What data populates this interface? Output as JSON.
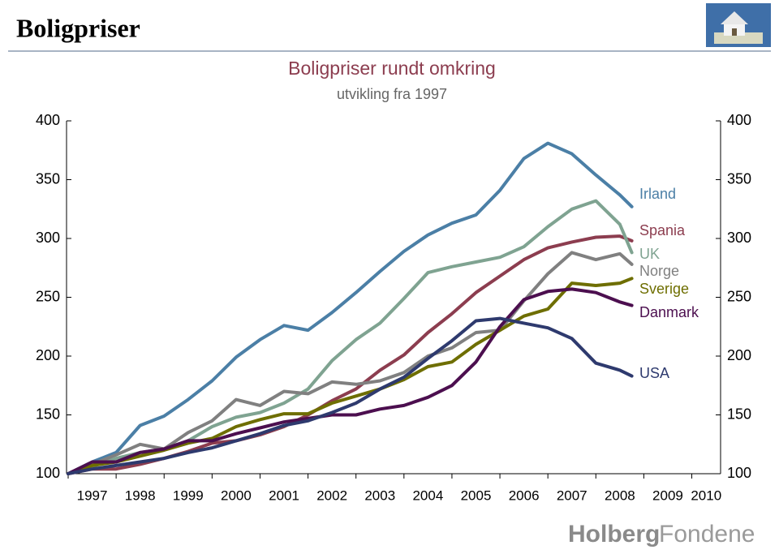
{
  "header": {
    "title": "Boligpriser"
  },
  "footer": {
    "logo_bold": "Holberg",
    "logo_light": "Fondene"
  },
  "chart_data": {
    "type": "line",
    "title": "Boligpriser rundt omkring",
    "subtitle": "utvikling fra 1997",
    "x": [
      1997,
      1997.5,
      1998,
      1998.5,
      1999,
      1999.5,
      2000,
      2000.5,
      2001,
      2001.5,
      2002,
      2002.5,
      2003,
      2003.5,
      2004,
      2004.5,
      2005,
      2005.5,
      2006,
      2006.5,
      2007,
      2007.5,
      2008,
      2008.5,
      2008.75
    ],
    "xlim": [
      1997,
      2010.6
    ],
    "xticks": [
      1997,
      1998,
      1999,
      2000,
      2001,
      2002,
      2003,
      2004,
      2005,
      2006,
      2007,
      2008,
      2009,
      2010
    ],
    "ylim": [
      100,
      400
    ],
    "yticks": [
      100,
      150,
      200,
      250,
      300,
      350,
      400
    ],
    "grid": false,
    "series": [
      {
        "name": "Irland",
        "color": "#4b7fa6",
        "values": [
          100,
          110,
          118,
          141,
          149,
          163,
          179,
          199,
          214,
          226,
          222,
          237,
          254,
          272,
          289,
          303,
          313,
          320,
          341,
          368,
          381,
          372,
          354,
          337,
          327
        ]
      },
      {
        "name": "Spania",
        "color": "#8c3d4f",
        "values": [
          100,
          104,
          104,
          108,
          113,
          119,
          126,
          128,
          133,
          140,
          150,
          162,
          172,
          188,
          201,
          220,
          236,
          254,
          268,
          282,
          292,
          297,
          301,
          302,
          298
        ]
      },
      {
        "name": "UK",
        "color": "#7fa391",
        "values": [
          100,
          106,
          113,
          118,
          121,
          128,
          140,
          148,
          152,
          160,
          172,
          196,
          214,
          228,
          249,
          271,
          276,
          280,
          284,
          293,
          310,
          325,
          332,
          312,
          288
        ]
      },
      {
        "name": "Norge",
        "color": "#808080",
        "values": [
          100,
          108,
          116,
          125,
          121,
          135,
          145,
          163,
          158,
          170,
          168,
          178,
          176,
          179,
          186,
          200,
          207,
          220,
          222,
          247,
          270,
          288,
          282,
          287,
          278
        ]
      },
      {
        "name": "Sverige",
        "color": "#6e6e00",
        "values": [
          100,
          107,
          110,
          115,
          120,
          126,
          130,
          140,
          146,
          151,
          151,
          160,
          166,
          172,
          180,
          191,
          195,
          210,
          222,
          234,
          240,
          262,
          260,
          262,
          266
        ]
      },
      {
        "name": "Danmark",
        "color": "#4c0f4f",
        "values": [
          100,
          110,
          110,
          118,
          121,
          128,
          128,
          134,
          139,
          144,
          147,
          150,
          150,
          155,
          158,
          165,
          175,
          195,
          225,
          248,
          255,
          257,
          254,
          246,
          243
        ]
      },
      {
        "name": "USA",
        "color": "#2e3a6e",
        "values": [
          100,
          104,
          107,
          110,
          113,
          118,
          122,
          128,
          134,
          141,
          145,
          152,
          160,
          172,
          182,
          198,
          213,
          230,
          232,
          228,
          224,
          215,
          194,
          188,
          183
        ]
      }
    ]
  }
}
